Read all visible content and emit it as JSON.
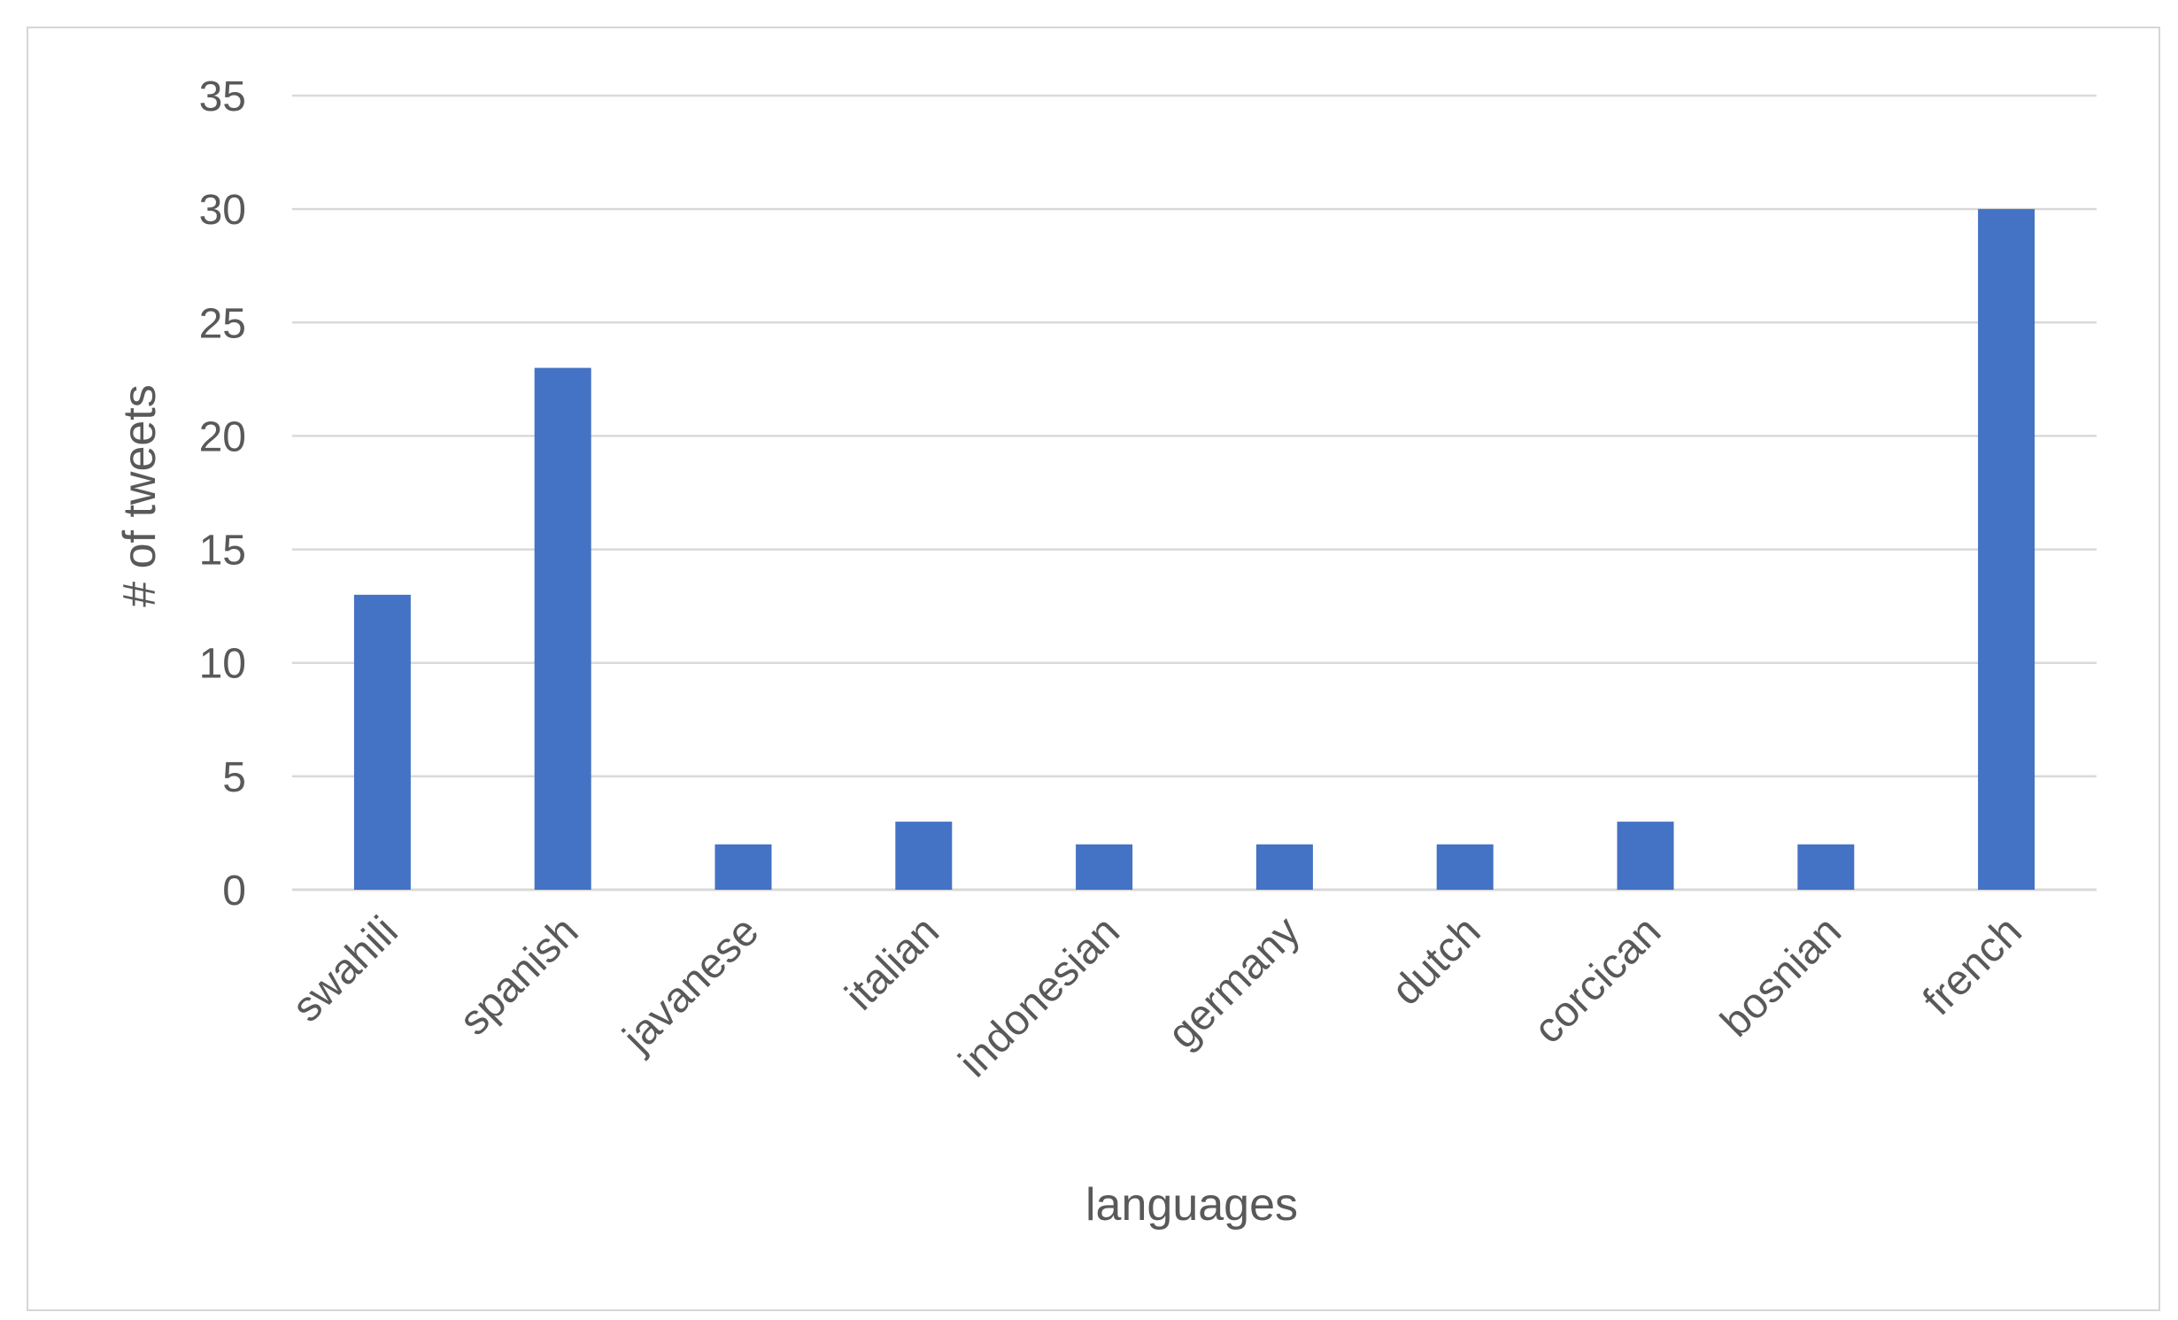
{
  "chart_data": {
    "type": "bar",
    "title": "",
    "xlabel": "languages",
    "ylabel": "# of tweets",
    "categories": [
      "swahili",
      "spanish",
      "javanese",
      "italian",
      "indonesian",
      "germany",
      "dutch",
      "corcican",
      "bosnian",
      "french"
    ],
    "values": [
      13,
      23,
      2,
      3,
      2,
      2,
      2,
      3,
      2,
      30
    ],
    "ylim": [
      0,
      35
    ],
    "yticks": [
      0,
      5,
      10,
      15,
      20,
      25,
      30,
      35
    ],
    "grid": true,
    "legend": "none",
    "bar_color": "#4472C4",
    "grid_color": "#d9d9d9",
    "text_color": "#595959"
  }
}
